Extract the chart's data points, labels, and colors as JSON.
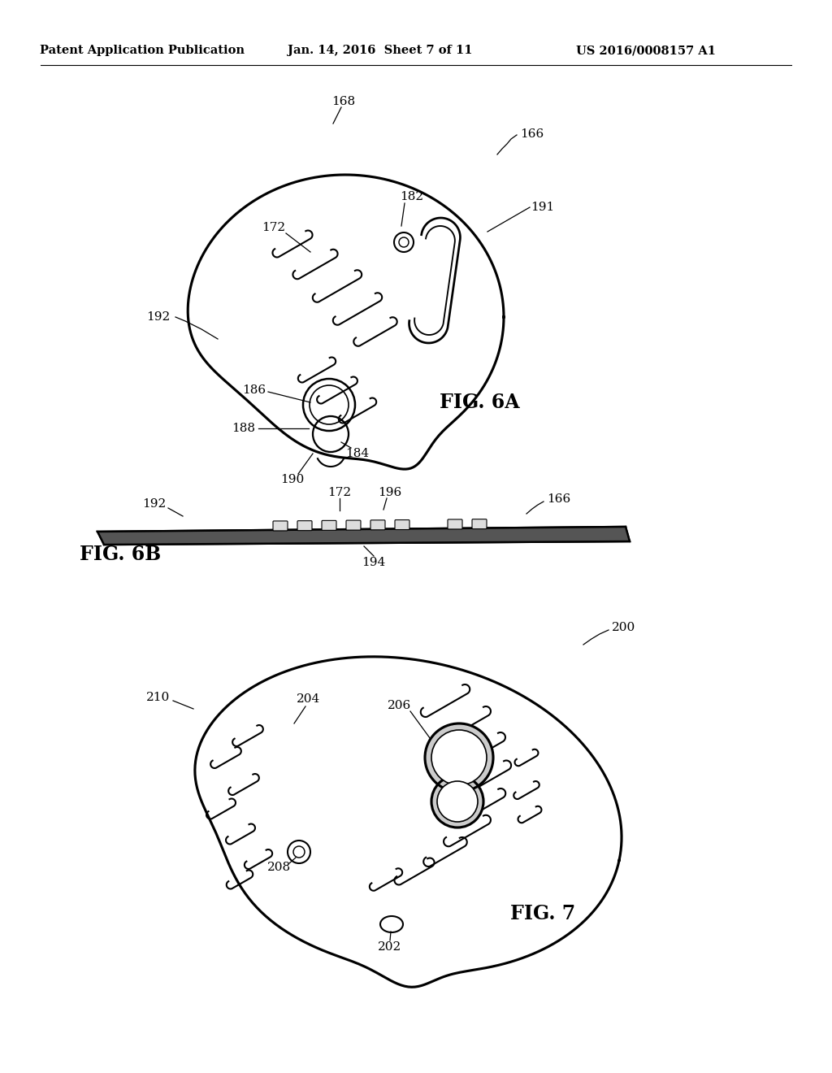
{
  "background_color": "#ffffff",
  "header_left": "Patent Application Publication",
  "header_center": "Jan. 14, 2016  Sheet 7 of 11",
  "header_right": "US 2016/0008157 A1",
  "fig6a_label": "FIG. 6A",
  "fig6b_label": "FIG. 6B",
  "fig7_label": "FIG. 7",
  "line_color": "#000000",
  "line_width": 1.5,
  "label_fontsize": 11,
  "fig_label_fontsize": 17
}
